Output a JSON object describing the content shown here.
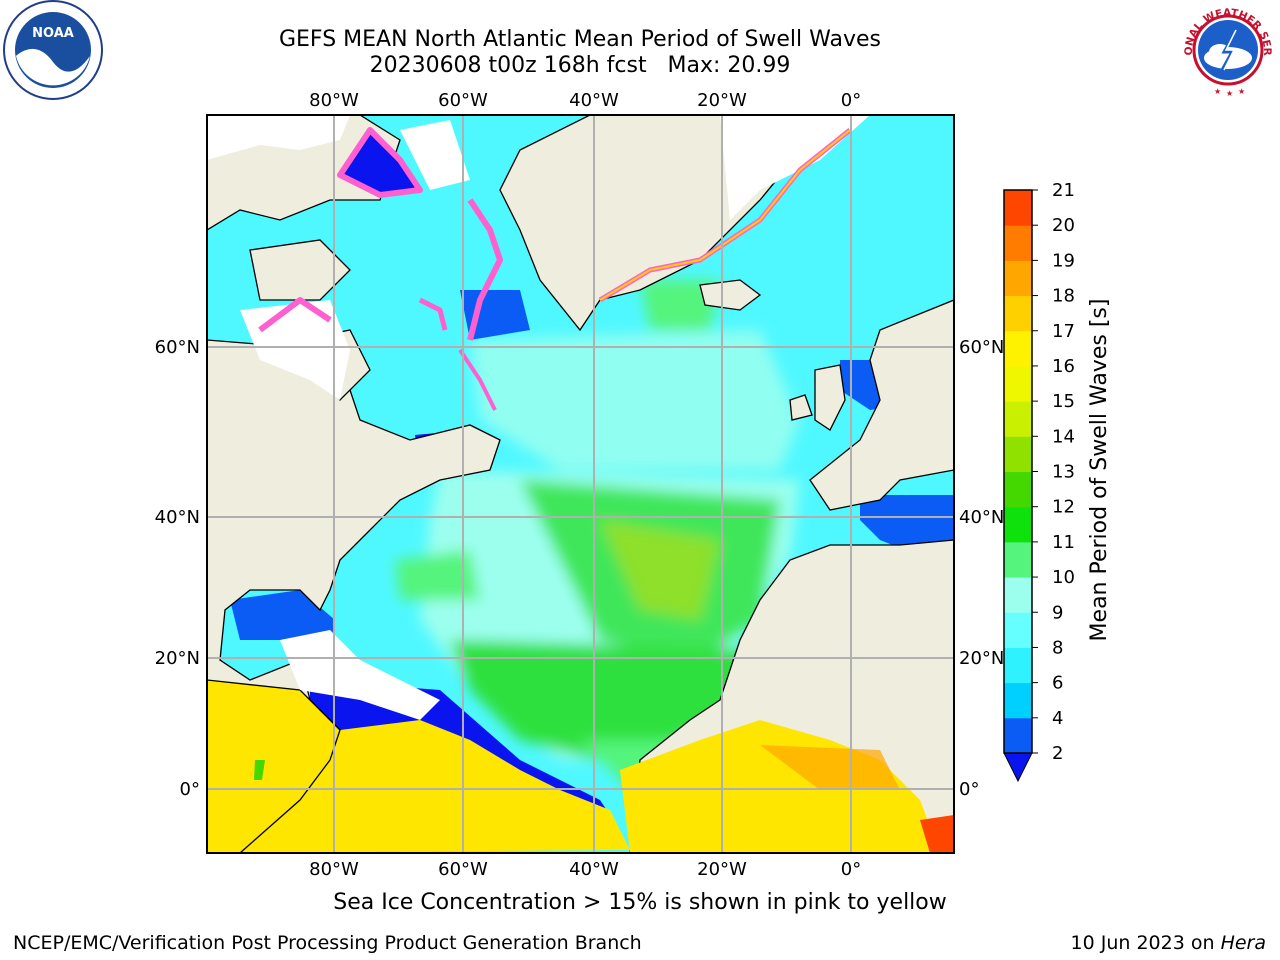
{
  "header": {
    "title": "GEFS MEAN North Atlantic Mean Period of Swell Waves",
    "subtitle": "20230608 t00z 168h fcst   Max: 20.99"
  },
  "logos": {
    "left": "noaa-logo",
    "left_text": "NOAA",
    "right": "national-weather-service-logo",
    "right_text": "NATIONAL WEATHER SERVICE"
  },
  "map": {
    "lon_labels": [
      "80°W",
      "60°W",
      "40°W",
      "20°W",
      "0°"
    ],
    "lat_labels": [
      "60°N",
      "40°N",
      "20°N",
      "0°"
    ],
    "colors": {
      "land": "#efedde",
      "ice_free": "#ffffff",
      "grid": "#b0b0b0",
      "coast": "#000000"
    }
  },
  "colorbar": {
    "label": "Mean Period of Swell Waves [s]",
    "ticks": [
      "2",
      "4",
      "6",
      "8",
      "9",
      "10",
      "11",
      "12",
      "13",
      "14",
      "15",
      "16",
      "17",
      "18",
      "19",
      "20",
      "21"
    ],
    "colors": [
      "#0a5cf4",
      "#00d0ff",
      "#2ff2ff",
      "#66ffff",
      "#9cffee",
      "#55f47c",
      "#0de20d",
      "#45d700",
      "#90e100",
      "#c8f000",
      "#eef700",
      "#fff200",
      "#ffd000",
      "#ffa600",
      "#ff7c00",
      "#ff4600",
      "#ff1200"
    ],
    "under_color": "#0a14ee"
  },
  "footer": {
    "note": "Sea Ice Concentration > 15% is shown in pink to yellow",
    "left": "NCEP/EMC/Verification Post Processing Product Generation Branch",
    "right_date": "10 Jun 2023 on ",
    "right_host": "Hera"
  }
}
